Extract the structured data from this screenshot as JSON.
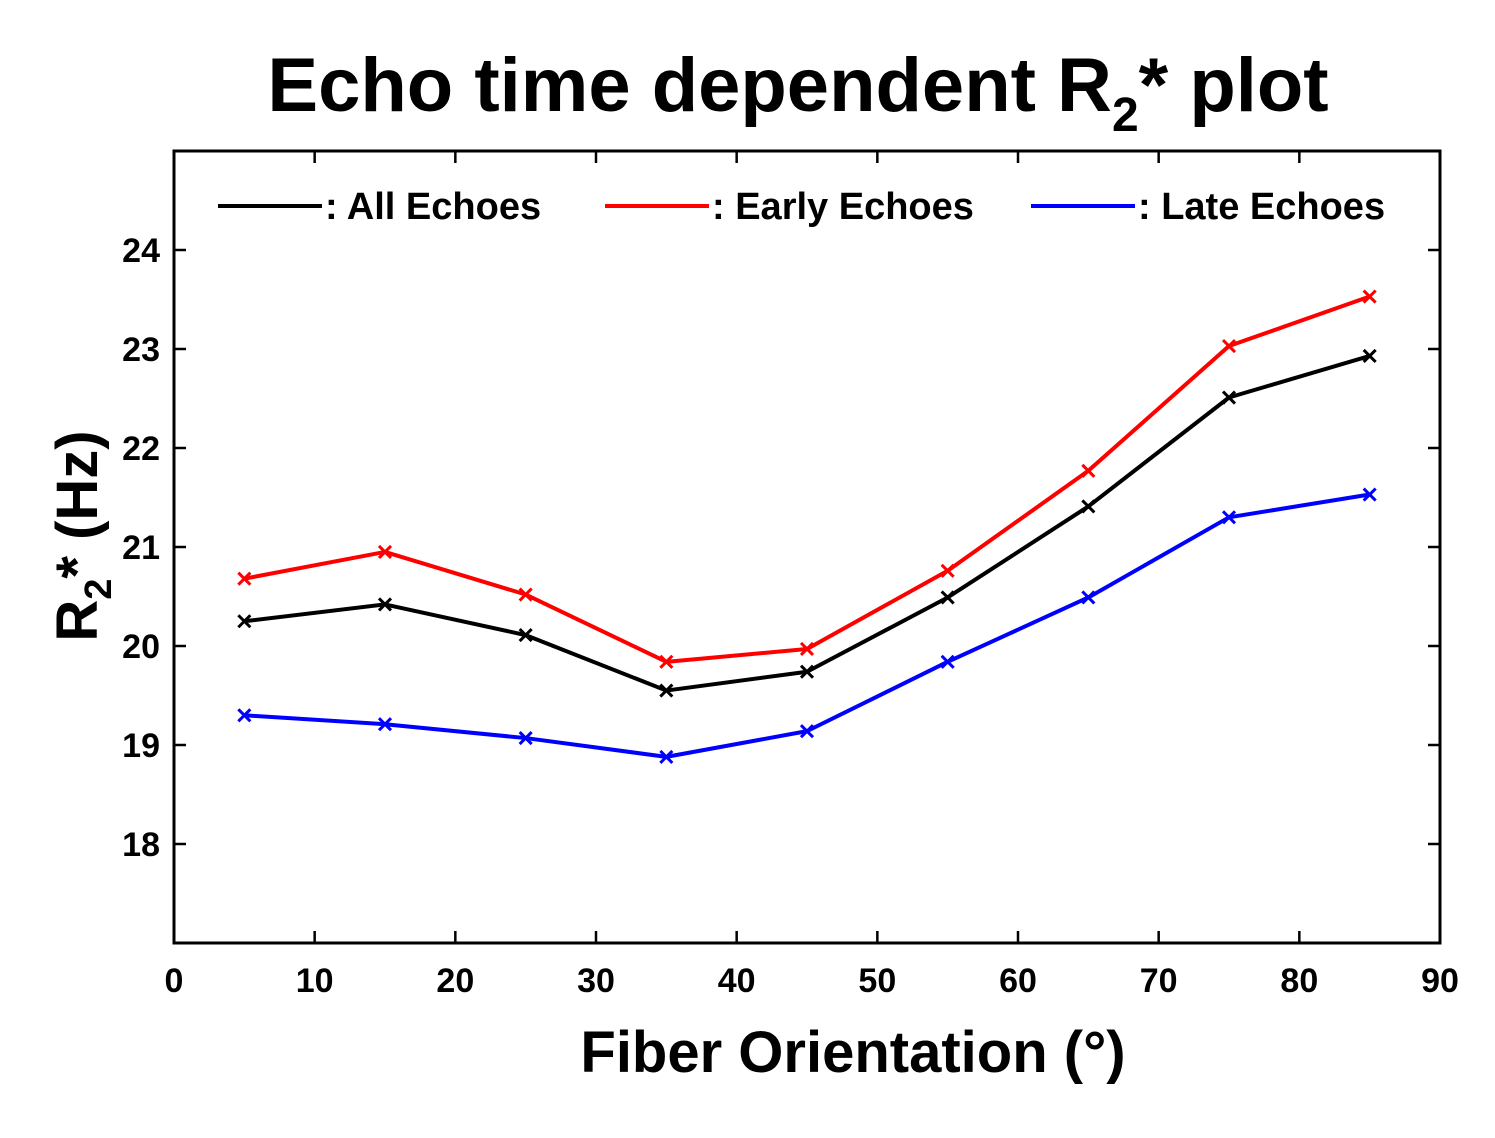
{
  "chart_data": {
    "type": "line",
    "title": {
      "main": "Echo time dependent R",
      "sub": "2",
      "tail": "* plot"
    },
    "xlabel": "Fiber Orientation (°)",
    "ylabel": {
      "main": "R",
      "sub": "2",
      "tail": "* (Hz)"
    },
    "xlim": [
      0,
      90
    ],
    "ylim": [
      17,
      25
    ],
    "x_ticks": [
      0,
      10,
      20,
      30,
      40,
      50,
      60,
      70,
      80,
      90
    ],
    "y_ticks": [
      18,
      19,
      20,
      21,
      22,
      23,
      24
    ],
    "grid": false,
    "legend_position": "top",
    "x": [
      5,
      15,
      25,
      35,
      45,
      55,
      65,
      75,
      85
    ],
    "series": [
      {
        "name": ": All Echoes",
        "color": "#000000",
        "marker": "x",
        "values": [
          20.25,
          20.42,
          20.11,
          19.55,
          19.74,
          20.49,
          21.41,
          22.51,
          22.93
        ]
      },
      {
        "name": ": Early Echoes",
        "color": "#ff0000",
        "marker": "x",
        "values": [
          20.68,
          20.95,
          20.52,
          19.84,
          19.97,
          20.76,
          21.77,
          23.03,
          23.53
        ]
      },
      {
        "name": ": Late Echoes",
        "color": "#0000ff",
        "marker": "x",
        "values": [
          19.3,
          19.21,
          19.07,
          18.88,
          19.14,
          19.84,
          20.49,
          21.3,
          21.53
        ]
      }
    ]
  }
}
